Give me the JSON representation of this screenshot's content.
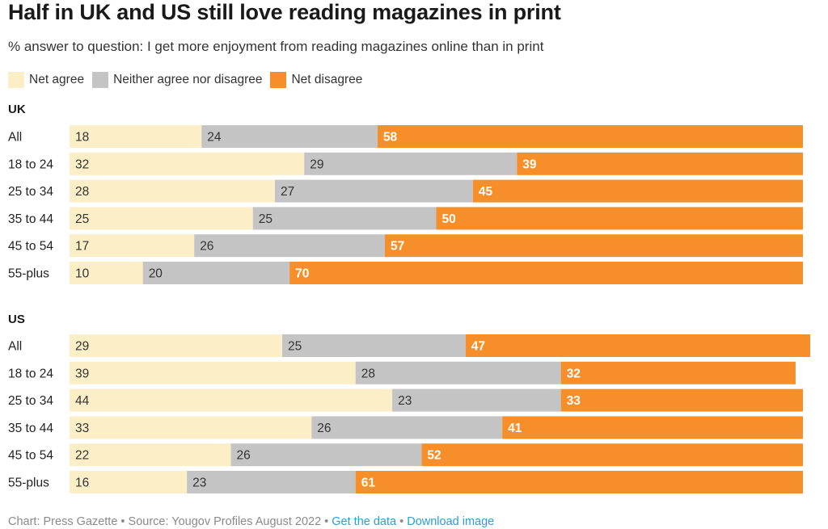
{
  "title": "Half in UK and US still love reading magazines in print",
  "subtitle": "% answer to question: I get more enjoyment from reading magazines online than in print",
  "colors": {
    "agree": "#fcefc8",
    "neither": "#c4c4c4",
    "disagree": "#f68f2a",
    "dark_text": "#333333",
    "light_text": "#ffffff"
  },
  "legend": [
    {
      "label": "Net agree",
      "color": "#fcefc8"
    },
    {
      "label": "Neither agree nor disagree",
      "color": "#c4c4c4"
    },
    {
      "label": "Net disagree",
      "color": "#f68f2a"
    }
  ],
  "chart_data": {
    "type": "bar",
    "stacked": true,
    "orientation": "horizontal",
    "series_names": [
      "Net agree",
      "Neither agree nor disagree",
      "Net disagree"
    ],
    "groups": [
      {
        "name": "UK",
        "categories": [
          "All",
          "18 to 24",
          "25 to 34",
          "35 to 44",
          "45 to 54",
          "55-plus"
        ],
        "values": [
          [
            18,
            24,
            58
          ],
          [
            32,
            29,
            39
          ],
          [
            28,
            27,
            45
          ],
          [
            25,
            25,
            50
          ],
          [
            17,
            26,
            57
          ],
          [
            10,
            20,
            70
          ]
        ]
      },
      {
        "name": "US",
        "categories": [
          "All",
          "18 to 24",
          "25 to 34",
          "35 to 44",
          "45 to 54",
          "55-plus"
        ],
        "values": [
          [
            29,
            25,
            47
          ],
          [
            39,
            28,
            32
          ],
          [
            44,
            23,
            33
          ],
          [
            33,
            26,
            41
          ],
          [
            22,
            26,
            52
          ],
          [
            16,
            23,
            61
          ]
        ]
      }
    ]
  },
  "footer": {
    "source": "Chart: Press Gazette • Source: Yougov Profiles August 2022 • ",
    "get_data": "Get the data",
    "separator": " • ",
    "download": "Download image"
  }
}
